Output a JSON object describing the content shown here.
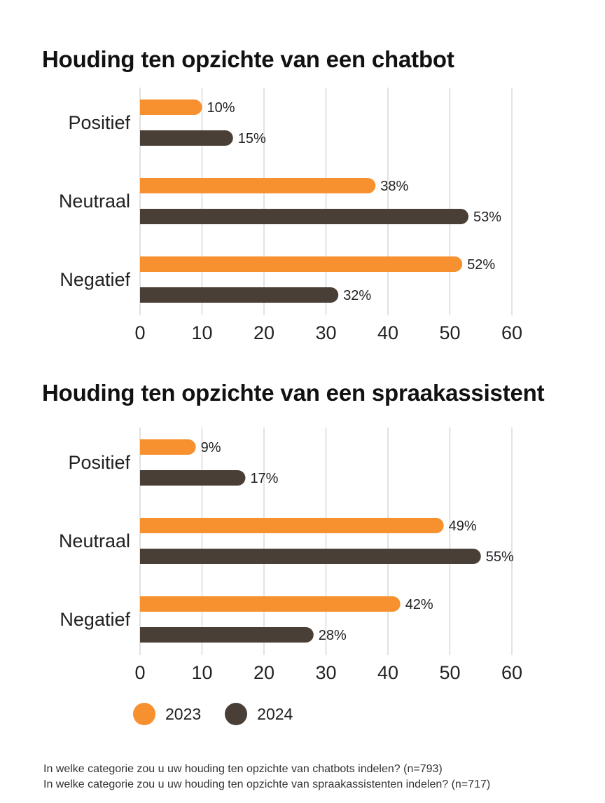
{
  "colors": {
    "s2023": "#F7902E",
    "s2024": "#4A3F36",
    "grid": "#CFCFCF"
  },
  "legend": [
    {
      "label": "2023",
      "color": "#F7902E"
    },
    {
      "label": "2024",
      "color": "#4A3F36"
    }
  ],
  "footnotes": [
    "In welke categorie zou u uw houding ten opzichte van chatbots indelen? (n=793)",
    "In welke categorie zou u uw houding ten opzichte van spraakassistenten indelen? (n=717)"
  ],
  "chart_data": [
    {
      "type": "bar",
      "orientation": "horizontal",
      "title": "Houding ten opzichte van een chatbot",
      "categories": [
        "Positief",
        "Neutraal",
        "Negatief"
      ],
      "series": [
        {
          "name": "2023",
          "values": [
            10,
            38,
            52
          ],
          "labels": [
            "10%",
            "38%",
            "52%"
          ]
        },
        {
          "name": "2024",
          "values": [
            15,
            53,
            32
          ],
          "labels": [
            "15%",
            "53%",
            "32%"
          ]
        }
      ],
      "xticks": [
        "0",
        "10",
        "20",
        "30",
        "40",
        "50",
        "60"
      ],
      "xlim": [
        0,
        60
      ],
      "grid": true,
      "legend": "bottom"
    },
    {
      "type": "bar",
      "orientation": "horizontal",
      "title": "Houding ten opzichte van een spraakassistent",
      "categories": [
        "Positief",
        "Neutraal",
        "Negatief"
      ],
      "series": [
        {
          "name": "2023",
          "values": [
            9,
            49,
            42
          ],
          "labels": [
            "9%",
            "49%",
            "42%"
          ]
        },
        {
          "name": "2024",
          "values": [
            17,
            55,
            28
          ],
          "labels": [
            "17%",
            "55%",
            "28%"
          ]
        }
      ],
      "xticks": [
        "0",
        "10",
        "20",
        "30",
        "40",
        "50",
        "60"
      ],
      "xlim": [
        0,
        60
      ],
      "grid": true,
      "legend": "bottom"
    }
  ]
}
